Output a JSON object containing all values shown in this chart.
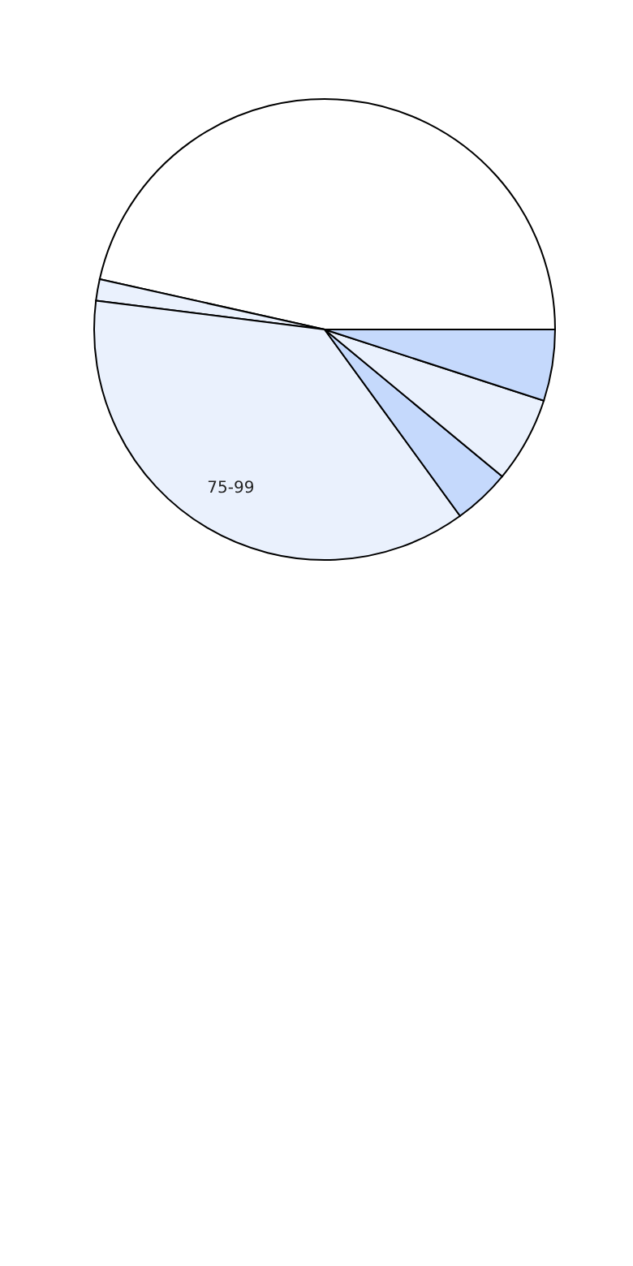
{
  "chart_data": {
    "type": "pie",
    "categories": [
      null,
      null,
      "75-99",
      null,
      null,
      null
    ],
    "values": [
      46.5,
      1.5,
      37,
      4,
      6,
      5
    ],
    "colors": [
      "#ffffff",
      "#eaf1fd",
      "#eaf1fd",
      "#c5d9fc",
      "#eaf1fd",
      "#c5d9fc"
    ],
    "legend": false
  }
}
